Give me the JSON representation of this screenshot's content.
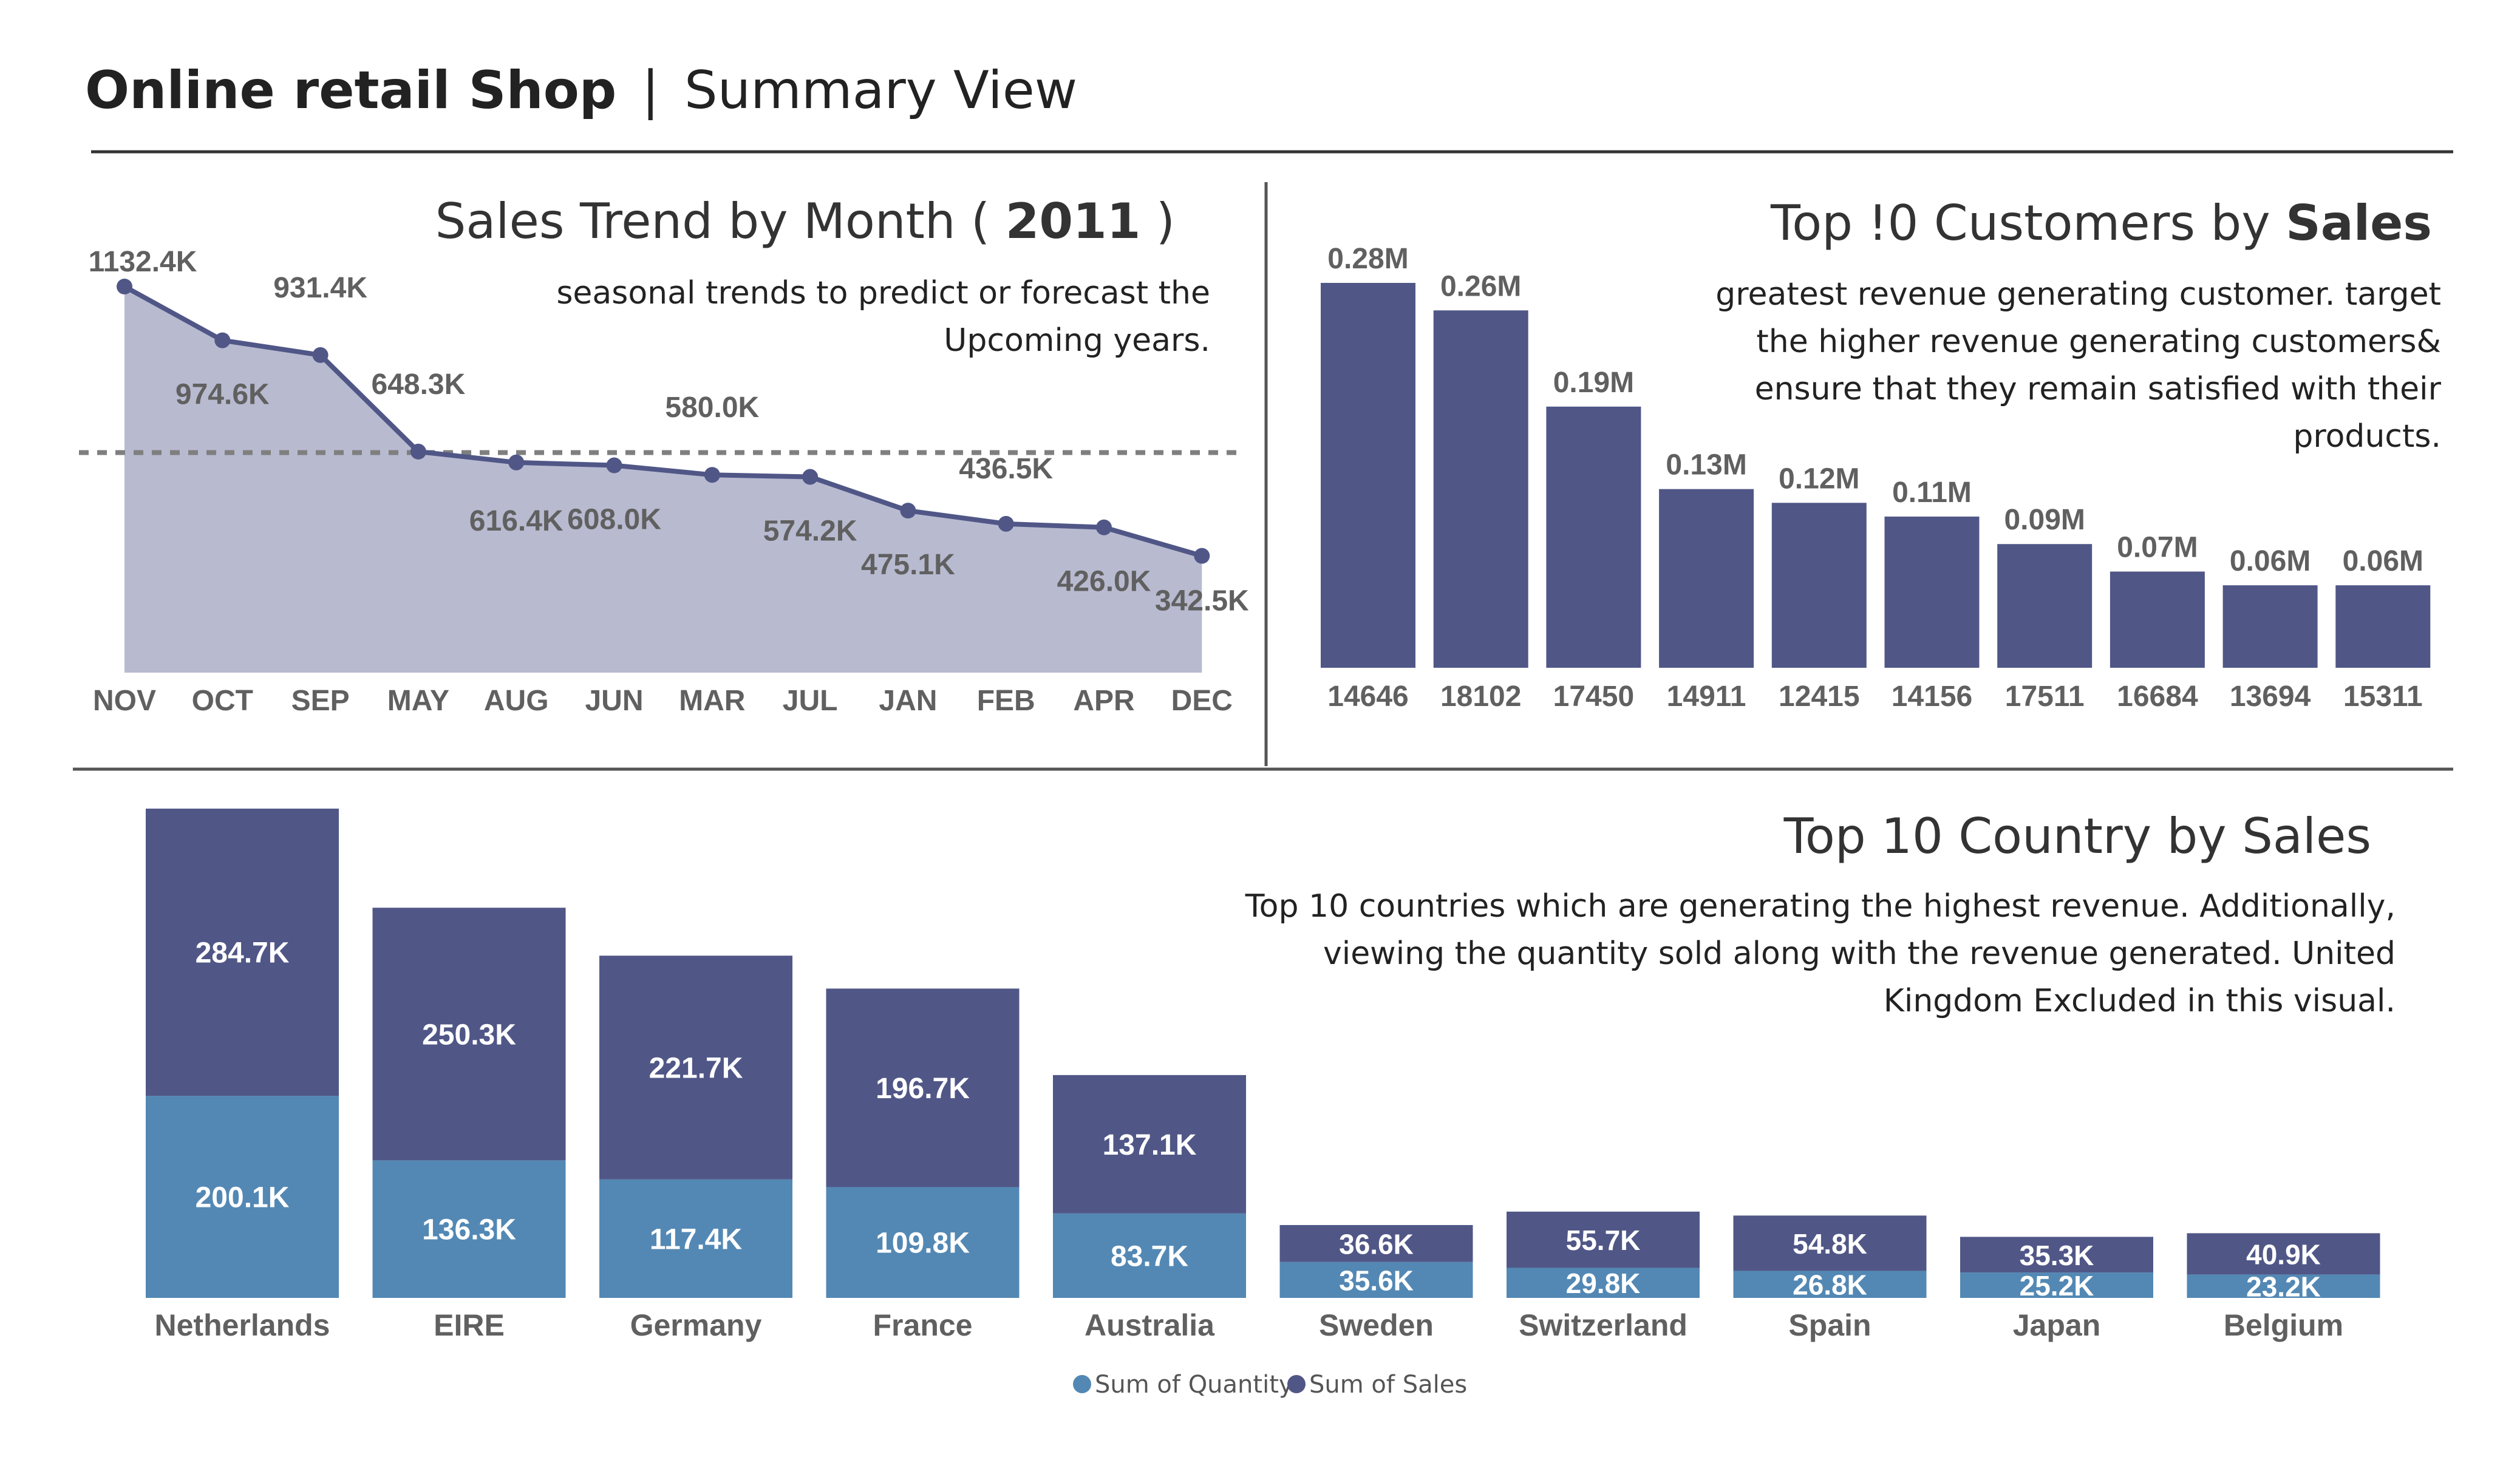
{
  "header": {
    "title_bold": "Online retail Shop",
    "separator": "|",
    "title_light": "Summary View"
  },
  "colors": {
    "navy": "#505787",
    "steel": "#5388b4",
    "area": "#b8bad0",
    "rule": "#555555",
    "avg_line": "#7f7f7f",
    "text_dark": "#333333",
    "label_gray": "#606060"
  },
  "trend": {
    "title_prefix": "Sales Trend by Month ( ",
    "title_year": "2011",
    "title_suffix": " )",
    "desc_line1": "seasonal trends to predict or forecast the",
    "desc_line2": "Upcoming years."
  },
  "customers": {
    "title_prefix": "Top !0 Customers by ",
    "title_bold": "Sales",
    "desc_lines": [
      "greatest revenue generating customer.  target",
      "the higher revenue generating customers&",
      "ensure that they remain satisfied with their",
      "products."
    ]
  },
  "countries": {
    "title": "Top 10 Country by Sales",
    "desc_lines": [
      "Top 10 countries which are generating the highest revenue. Additionally,",
      "viewing the quantity sold along with the revenue generated. United",
      "Kingdom Excluded in this visual."
    ],
    "legend": [
      {
        "label": "Sum of Quantity",
        "color": "#5388b4"
      },
      {
        "label": "Sum of Sales",
        "color": "#505787"
      }
    ]
  },
  "chart_data": [
    {
      "id": "trend",
      "type": "area",
      "title": "Sales Trend by Month ( 2011 )",
      "categories": [
        "NOV",
        "OCT",
        "SEP",
        "MAY",
        "AUG",
        "JUN",
        "MAR",
        "JUL",
        "JAN",
        "FEB",
        "APR",
        "DEC"
      ],
      "values": [
        1132.4,
        974.6,
        931.4,
        648.3,
        616.4,
        608.0,
        580.0,
        574.2,
        475.1,
        436.5,
        426.0,
        342.5
      ],
      "labels": [
        "1132.4K",
        "974.6K",
        "931.4K",
        "648.3K",
        "616.4K",
        "608.0K",
        "580.0K",
        "574.2K",
        "475.1K",
        "436.5K",
        "426.0K",
        "342.5K"
      ],
      "average_line": 645.4,
      "ylim": [
        0,
        1132.4
      ],
      "grid": false
    },
    {
      "id": "customers",
      "type": "bar",
      "title": "Top !0 Customers by Sales",
      "categories": [
        "14646",
        "18102",
        "17450",
        "14911",
        "12415",
        "14156",
        "17511",
        "16684",
        "13694",
        "15311"
      ],
      "values": [
        0.28,
        0.26,
        0.19,
        0.13,
        0.12,
        0.11,
        0.09,
        0.07,
        0.06,
        0.06
      ],
      "labels": [
        "0.28M",
        "0.26M",
        "0.19M",
        "0.13M",
        "0.12M",
        "0.11M",
        "0.09M",
        "0.07M",
        "0.06M",
        "0.06M"
      ],
      "ylim": [
        0,
        0.28
      ],
      "grid": false
    },
    {
      "id": "countries",
      "type": "bar",
      "stacked": true,
      "title": "Top 10 Country by Sales",
      "categories": [
        "Netherlands",
        "EIRE",
        "Germany",
        "France",
        "Australia",
        "Sweden",
        "Switzerland",
        "Spain",
        "Japan",
        "Belgium"
      ],
      "series": [
        {
          "name": "Sum of Quantity",
          "values": [
            200.1,
            136.3,
            117.4,
            109.8,
            83.7,
            35.6,
            29.8,
            26.8,
            25.2,
            23.2
          ],
          "labels": [
            "200.1K",
            "136.3K",
            "117.4K",
            "109.8K",
            "83.7K",
            "35.6K",
            "29.8K",
            "26.8K",
            "25.2K",
            "23.2K"
          ]
        },
        {
          "name": "Sum of Sales",
          "values": [
            284.7,
            250.3,
            221.7,
            196.7,
            137.1,
            36.6,
            55.7,
            54.8,
            35.3,
            40.9
          ],
          "labels": [
            "284.7K",
            "250.3K",
            "221.7K",
            "196.7K",
            "137.1K",
            "36.6K",
            "55.7K",
            "54.8K",
            "35.3K",
            "40.9K"
          ]
        }
      ],
      "legend_position": "bottom",
      "grid": false
    }
  ]
}
